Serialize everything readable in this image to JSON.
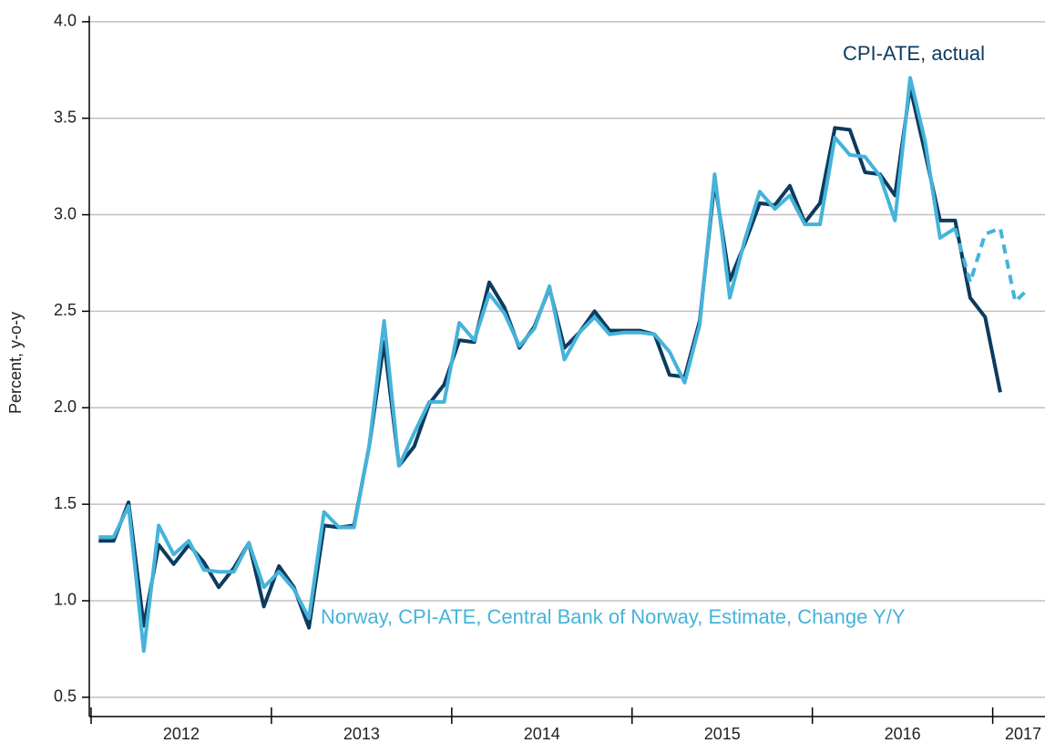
{
  "chart_data": {
    "type": "line",
    "y_label": "Percent, y-o-y",
    "x": [
      2012.042,
      2012.125,
      2012.208,
      2012.292,
      2012.375,
      2012.458,
      2012.542,
      2012.625,
      2012.708,
      2012.792,
      2012.875,
      2012.958,
      2013.042,
      2013.125,
      2013.208,
      2013.292,
      2013.375,
      2013.458,
      2013.542,
      2013.625,
      2013.708,
      2013.792,
      2013.875,
      2013.958,
      2014.042,
      2014.125,
      2014.208,
      2014.292,
      2014.375,
      2014.458,
      2014.542,
      2014.625,
      2014.708,
      2014.792,
      2014.875,
      2014.958,
      2015.042,
      2015.125,
      2015.208,
      2015.292,
      2015.375,
      2015.458,
      2015.542,
      2015.625,
      2015.708,
      2015.792,
      2015.875,
      2015.958,
      2016.042,
      2016.125,
      2016.208,
      2016.292,
      2016.375,
      2016.458,
      2016.542,
      2016.625,
      2016.708,
      2016.792,
      2016.875,
      2016.958,
      2017.042,
      2017.125,
      2017.18
    ],
    "series": [
      {
        "name": "CPI-ATE, actual",
        "color": "#0d3b5e",
        "values": [
          1.31,
          1.31,
          1.51,
          0.87,
          1.29,
          1.19,
          1.29,
          1.2,
          1.07,
          1.17,
          1.3,
          0.97,
          1.18,
          1.07,
          0.86,
          1.39,
          1.38,
          1.39,
          1.8,
          2.34,
          1.7,
          1.8,
          2.02,
          2.12,
          2.35,
          2.34,
          2.65,
          2.52,
          2.31,
          2.42,
          2.62,
          2.31,
          2.39,
          2.5,
          2.4,
          2.4,
          2.4,
          2.38,
          2.17,
          2.16,
          2.45,
          3.17,
          2.66,
          2.85,
          3.06,
          3.05,
          3.15,
          2.96,
          3.06,
          3.45,
          3.44,
          3.22,
          3.21,
          3.1,
          3.66,
          3.32,
          2.97,
          2.97,
          2.57,
          2.47,
          2.08,
          null,
          null
        ]
      },
      {
        "name": "Norway, CPI-ATE, Central Bank of Norway, Estimate, Change Y/Y",
        "color": "#45b3da",
        "values": [
          1.33,
          1.33,
          1.49,
          0.74,
          1.39,
          1.24,
          1.31,
          1.16,
          1.15,
          1.15,
          1.3,
          1.07,
          1.15,
          1.06,
          0.91,
          1.46,
          1.38,
          1.38,
          1.8,
          2.45,
          1.7,
          1.87,
          2.03,
          2.03,
          2.44,
          2.35,
          2.59,
          2.49,
          2.32,
          2.41,
          2.63,
          2.25,
          2.39,
          2.47,
          2.38,
          2.39,
          2.39,
          2.38,
          2.29,
          2.13,
          2.43,
          3.21,
          2.57,
          2.87,
          3.12,
          3.03,
          3.1,
          2.95,
          2.95,
          3.4,
          3.31,
          3.3,
          3.2,
          2.97,
          3.71,
          3.38,
          2.88,
          2.93,
          null,
          null,
          null,
          null,
          null
        ]
      },
      {
        "color": "#45b3da",
        "dashed": true,
        "values": [
          null,
          null,
          null,
          null,
          null,
          null,
          null,
          null,
          null,
          null,
          null,
          null,
          null,
          null,
          null,
          null,
          null,
          null,
          null,
          null,
          null,
          null,
          null,
          null,
          null,
          null,
          null,
          null,
          null,
          null,
          null,
          null,
          null,
          null,
          null,
          null,
          null,
          null,
          null,
          null,
          null,
          null,
          null,
          null,
          null,
          null,
          null,
          null,
          null,
          null,
          null,
          null,
          null,
          null,
          null,
          null,
          null,
          2.93,
          2.65,
          2.9,
          2.93,
          2.55,
          2.6
        ]
      }
    ],
    "xlim": [
      2011.99,
      2017.29
    ],
    "xticks": [
      2012,
      2013,
      2014,
      2015,
      2016,
      2017
    ],
    "ylim": [
      0.4,
      4.03
    ],
    "yticks": [
      {
        "value": 0.5,
        "label": "0.5"
      },
      {
        "value": 1,
        "label": "1.0"
      },
      {
        "value": 1.5,
        "label": "1.5"
      },
      {
        "value": 2,
        "label": "2.0"
      },
      {
        "value": 2.5,
        "label": "2.5"
      },
      {
        "value": 3,
        "label": "3.0"
      },
      {
        "value": 3.5,
        "label": "3.5"
      },
      {
        "value": 4,
        "label": "4.0"
      }
    ],
    "grid": true
  }
}
